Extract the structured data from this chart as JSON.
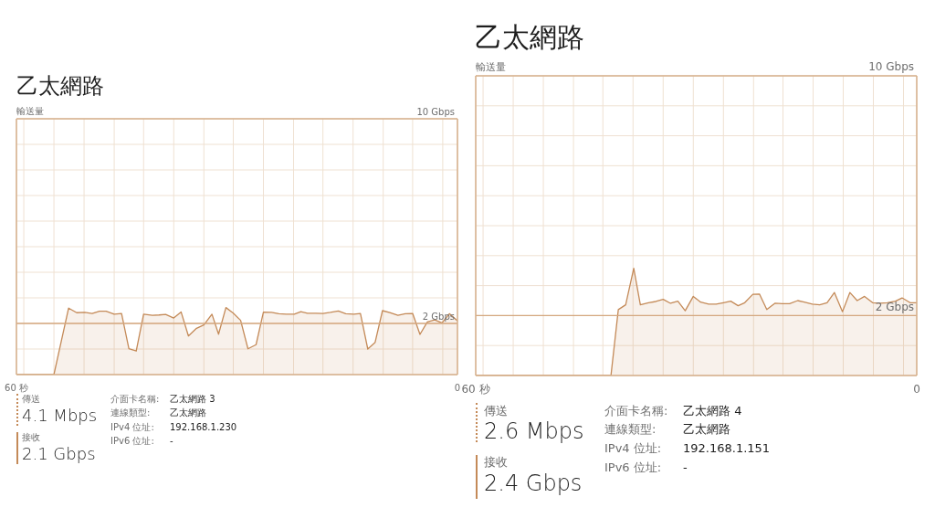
{
  "chart_data": [
    {
      "type": "area",
      "title": "乙太網路",
      "ylabel": "輸送量",
      "xlim": [
        60,
        0
      ],
      "xticks": [
        {
          "value": 60,
          "label": "60 秒"
        },
        {
          "value": 59,
          "label": null
        },
        {
          "value": 54.9,
          "label": null
        },
        {
          "value": 50.8,
          "label": null
        },
        {
          "value": 46.7,
          "label": null
        },
        {
          "value": 42.7,
          "label": null
        },
        {
          "value": 38.6,
          "label": null
        },
        {
          "value": 34.5,
          "label": null
        },
        {
          "value": 30.5,
          "label": null
        },
        {
          "value": 26.4,
          "label": null
        },
        {
          "value": 22.3,
          "label": null
        },
        {
          "value": 18.3,
          "label": null
        },
        {
          "value": 14.2,
          "label": null
        },
        {
          "value": 10.1,
          "label": null
        },
        {
          "value": 6.1,
          "label": null
        },
        {
          "value": 2,
          "label": null
        },
        0
      ],
      "ylim": [
        0,
        10
      ],
      "yticks": [
        {
          "value": 0,
          "label": null
        },
        {
          "value": 1,
          "label": null
        },
        {
          "value": 2,
          "label": "2 Gbps"
        },
        {
          "value": 3,
          "label": null
        },
        {
          "value": 4,
          "label": null
        },
        {
          "value": 5,
          "label": null
        },
        {
          "value": 6,
          "label": null
        },
        {
          "value": 7,
          "label": null
        },
        {
          "value": 8,
          "label": null
        },
        {
          "value": 9,
          "label": null
        },
        {
          "value": 10,
          "label": "10 Gbps"
        }
      ],
      "grid": true,
      "ref_lines": [
        {
          "axis": "y",
          "value": 2,
          "color": "#d4a880"
        }
      ],
      "series": [
        {
          "color": "#c48a58",
          "x": [
            60,
            54.9,
            52.9,
            51.8,
            50.7,
            49.7,
            48.7,
            47.8,
            46.7,
            45.7,
            44.7,
            43.7,
            42.7,
            41.5,
            40.6,
            39.7,
            38.6,
            37.6,
            36.6,
            35.5,
            34.5,
            33.4,
            32.5,
            31.5,
            30.5,
            29.5,
            28.5,
            27.4,
            26.4,
            25.3,
            24.3,
            23.3,
            22.2,
            21.3,
            20.4,
            19.3,
            18.3,
            17.3,
            16.2,
            15.2,
            14.1,
            13.2,
            12.2,
            11.2,
            10.2,
            9.2,
            8.1,
            7.1,
            6.1,
            5.1,
            4.1,
            3.1,
            2.1,
            1.1,
            0
          ],
          "values": [
            0,
            0,
            2.6,
            2.42,
            2.43,
            2.39,
            2.48,
            2.48,
            2.36,
            2.39,
            1.01,
            0.92,
            2.36,
            2.32,
            2.33,
            2.35,
            2.21,
            2.45,
            1.51,
            1.81,
            1.94,
            2.36,
            1.58,
            2.62,
            2.4,
            2.12,
            1.01,
            1.17,
            2.44,
            2.43,
            2.38,
            2.36,
            2.36,
            2.46,
            2.4,
            2.4,
            2.39,
            2.43,
            2.49,
            2.38,
            2.36,
            2.39,
            1.0,
            1.26,
            2.5,
            2.42,
            2.32,
            2.38,
            2.39,
            1.57,
            2.06,
            2.14,
            2.02,
            2.38,
            2.1
          ]
        }
      ],
      "annotations": [
        "傳送",
        "4.1 Mbps",
        "接收",
        "2.1 Gbps",
        "介面卡名稱:",
        "乙太網路 3",
        "連線類型:",
        "乙太網路",
        "IPv4 位址:",
        "192.168.1.230",
        "IPv6 位址:",
        "-"
      ]
    },
    {
      "type": "area",
      "title": "乙太網路",
      "ylabel": "輸送量",
      "xlim": [
        60,
        0
      ],
      "xticks": [
        {
          "value": 60,
          "label": "60 秒"
        },
        {
          "value": 59,
          "label": null
        },
        {
          "value": 54.9,
          "label": null
        },
        {
          "value": 50.8,
          "label": null
        },
        {
          "value": 46.7,
          "label": null
        },
        {
          "value": 42.7,
          "label": null
        },
        {
          "value": 38.6,
          "label": null
        },
        {
          "value": 34.5,
          "label": null
        },
        {
          "value": 30.4,
          "label": null
        },
        {
          "value": 26.3,
          "label": null
        },
        {
          "value": 22.2,
          "label": null
        },
        {
          "value": 18.2,
          "label": null
        },
        {
          "value": 14.1,
          "label": null
        },
        {
          "value": 10,
          "label": null
        },
        {
          "value": 5.9,
          "label": null
        },
        {
          "value": 1.8,
          "label": null
        },
        0
      ],
      "ylim": [
        0,
        10
      ],
      "yticks": [
        {
          "value": 0,
          "label": null
        },
        {
          "value": 1,
          "label": null
        },
        {
          "value": 2,
          "label": "2 Gbps"
        },
        {
          "value": 3,
          "label": null
        },
        {
          "value": 4,
          "label": null
        },
        {
          "value": 5,
          "label": null
        },
        {
          "value": 6,
          "label": null
        },
        {
          "value": 7,
          "label": null
        },
        {
          "value": 8,
          "label": null
        },
        {
          "value": 9,
          "label": null
        },
        {
          "value": 10,
          "label": "10 Gbps"
        }
      ],
      "grid": true,
      "ref_lines": [
        {
          "axis": "y",
          "value": 2,
          "color": "#d4a880"
        }
      ],
      "series": [
        {
          "color": "#c48a58",
          "x": [
            60,
            41.6,
            40.6,
            39.6,
            38.5,
            37.6,
            36.5,
            35.5,
            34.5,
            33.5,
            32.5,
            31.5,
            30.4,
            29.4,
            28.3,
            27.3,
            26.3,
            25.3,
            24.3,
            23.4,
            22.3,
            21.4,
            20.4,
            19.3,
            18.3,
            17.3,
            16.2,
            15.3,
            14.2,
            13.2,
            12.2,
            11.2,
            10.1,
            9.1,
            8.1,
            7.1,
            6,
            5,
            4,
            2.9,
            2,
            0.9,
            0
          ],
          "values": [
            0,
            0,
            2.2,
            2.36,
            3.58,
            2.36,
            2.43,
            2.47,
            2.54,
            2.41,
            2.48,
            2.16,
            2.64,
            2.45,
            2.38,
            2.38,
            2.43,
            2.48,
            2.33,
            2.43,
            2.71,
            2.72,
            2.2,
            2.41,
            2.4,
            2.4,
            2.5,
            2.45,
            2.38,
            2.36,
            2.43,
            2.77,
            2.13,
            2.77,
            2.5,
            2.64,
            2.43,
            2.41,
            2.43,
            2.48,
            2.59,
            2.43,
            2.43
          ]
        }
      ],
      "annotations": [
        "傳送",
        "2.6 Mbps",
        "接收",
        "2.4 Gbps",
        "介面卡名稱:",
        "乙太網路 4",
        "連線類型:",
        "乙太網路",
        "IPv4 位址:",
        "192.168.1.151",
        "IPv6 位址:",
        "-"
      ]
    }
  ]
}
